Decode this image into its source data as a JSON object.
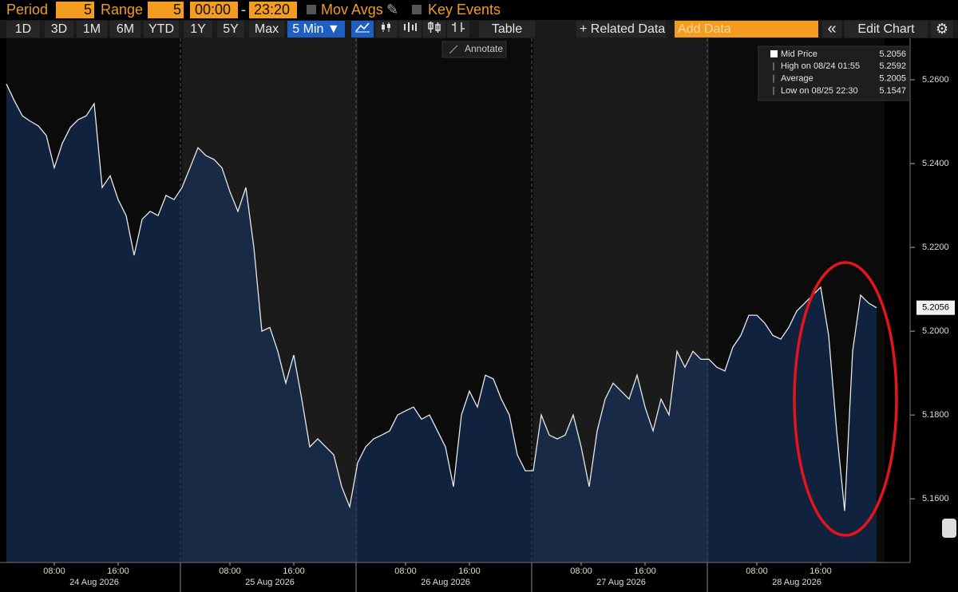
{
  "toolbar": {
    "period_label": "Period",
    "period_value": "5",
    "range_label": "Range",
    "range_value": "5",
    "start_time": "00:00",
    "separator": "-",
    "end_time": "23:20",
    "mov_avgs": "Mov Avgs",
    "key_events": "Key Events",
    "buttons": [
      "1D",
      "3D",
      "1M",
      "6M",
      "YTD",
      "1Y",
      "5Y",
      "Max"
    ],
    "interval": "5 Min ▼",
    "table": "Table",
    "related_data": "+ Related Data",
    "add_data": "Add Data",
    "collapse": "«",
    "edit_chart": "Edit Chart",
    "annotate": "Annotate"
  },
  "legend": [
    {
      "label": "Mid Price",
      "value": "5.2056"
    },
    {
      "label": "High on 08/24 01:55",
      "value": "5.2592"
    },
    {
      "label": "Average",
      "value": "5.2005"
    },
    {
      "label": "Low on 08/25 22:30",
      "value": "5.1547"
    }
  ],
  "chart_data": {
    "type": "area",
    "categories": [
      null,
      null,
      null,
      null,
      null,
      null,
      "08:00",
      null,
      null,
      null,
      null,
      null,
      null,
      null,
      "16:00",
      null,
      null,
      null,
      null,
      null,
      null,
      null,
      null,
      null,
      null,
      null,
      null,
      null,
      "08:00",
      null,
      null,
      null,
      null,
      null,
      null,
      null,
      "16:00",
      null,
      null,
      null,
      null,
      null,
      null,
      null,
      null,
      null,
      null,
      null,
      null,
      null,
      "08:00",
      null,
      null,
      null,
      null,
      null,
      null,
      null,
      "16:00",
      null,
      null,
      null,
      null,
      null,
      null,
      null,
      null,
      null,
      null,
      null,
      null,
      null,
      "08:00",
      null,
      null,
      null,
      null,
      null,
      null,
      null,
      "16:00",
      null,
      null,
      null,
      null,
      null,
      null,
      null,
      null,
      null,
      null,
      null,
      null,
      null,
      "08:00",
      null,
      null,
      null,
      null,
      null,
      null,
      null,
      "16:00",
      null,
      null,
      null,
      null,
      null,
      null,
      null
    ],
    "day_labels": [
      "24 Aug 2026",
      "25 Aug 2026",
      "26 Aug 2026",
      "27 Aug 2026",
      "28 Aug 2026"
    ],
    "series": [
      {
        "name": "Mid Price",
        "color": "#e8e8e8",
        "values": [
          5.259,
          5.255,
          5.2514,
          5.2501,
          5.249,
          5.2467,
          5.239,
          5.2448,
          5.2486,
          5.2505,
          5.2514,
          5.2543,
          5.2343,
          5.2371,
          5.2314,
          5.2276,
          5.2181,
          5.2267,
          5.2286,
          5.2276,
          5.2324,
          5.2314,
          5.2343,
          5.239,
          5.2438,
          5.2419,
          5.241,
          5.239,
          5.2333,
          5.2286,
          5.2343,
          5.22,
          5.2,
          5.2009,
          5.1952,
          5.1876,
          5.1943,
          5.1838,
          5.1724,
          5.1743,
          5.1724,
          5.1705,
          5.1629,
          5.1581,
          5.1686,
          5.1724,
          5.1743,
          5.1752,
          5.1762,
          5.18,
          5.181,
          5.1819,
          5.179,
          5.18,
          5.1762,
          5.1724,
          5.1629,
          5.18,
          5.1857,
          5.1819,
          5.1895,
          5.1886,
          5.1838,
          5.18,
          5.1705,
          5.1667,
          5.1667,
          5.18,
          5.1752,
          5.1743,
          5.1752,
          5.18,
          5.1724,
          5.1629,
          5.1762,
          5.1838,
          5.1876,
          5.1857,
          5.1838,
          5.1895,
          5.1819,
          5.1762,
          5.1838,
          5.18,
          5.1952,
          5.1914,
          5.1952,
          5.1933,
          5.1933,
          5.1914,
          5.1905,
          5.1962,
          5.199,
          5.2038,
          5.2038,
          5.2019,
          5.199,
          5.1981,
          5.2009,
          5.2048,
          5.2067,
          5.2086,
          5.2105,
          5.199,
          5.1762,
          5.1571,
          5.1952,
          5.2086,
          5.2067,
          5.2056
        ]
      }
    ],
    "ylim": [
      5.1448,
      5.2699
    ],
    "yticks": [
      {
        "value": 5.16,
        "label": "5.1600"
      },
      {
        "value": 5.18,
        "label": "5.1800"
      },
      {
        "value": 5.2,
        "label": "5.2000"
      },
      {
        "value": 5.22,
        "label": "5.2200"
      },
      {
        "value": 5.24,
        "label": "5.2400"
      },
      {
        "value": 5.26,
        "label": "5.2600"
      }
    ],
    "last_value_label": "5.2056"
  }
}
